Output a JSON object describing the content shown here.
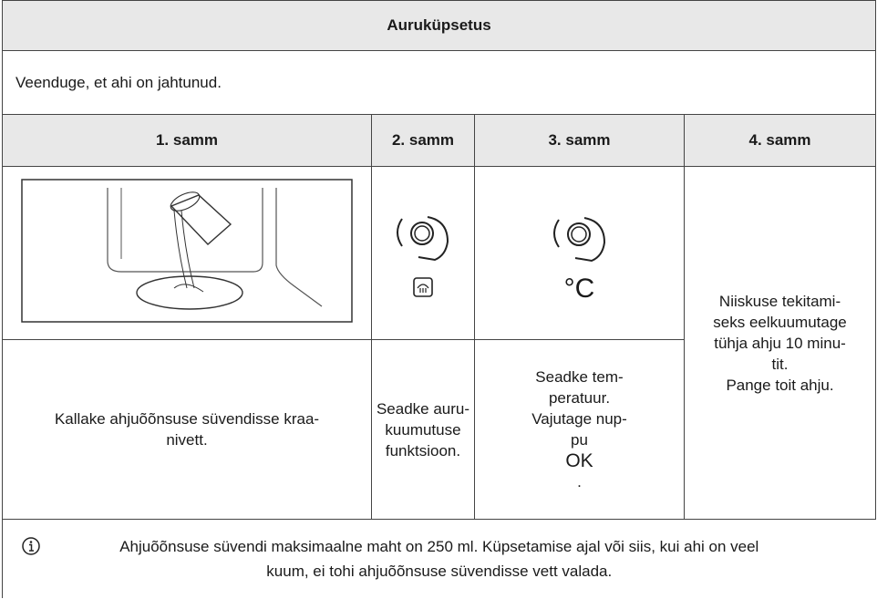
{
  "title": "Auruküpsetus",
  "intro": "Veenduge, et ahi on jahtunud.",
  "steps": [
    {
      "heading": "1. samm",
      "text": [
        "Kallake ahjuõõnsuse süvendisse kraa-",
        "nivett."
      ]
    },
    {
      "heading": "2. samm",
      "text": [
        "Seadke auru-",
        "kuumutuse",
        "funktsioon."
      ]
    },
    {
      "heading": "3. samm",
      "symbol": "°C",
      "text": [
        "Seadke tem-",
        "peratuur.",
        "Vajutage nup-",
        "pu",
        "OK",
        "."
      ]
    },
    {
      "heading": "4. samm",
      "text": [
        "Niiskuse tekitami-",
        "seks eelkuumutage",
        "tühja ahju 10 minu-",
        "tit.",
        "Pange toit ahju."
      ]
    }
  ],
  "note": [
    "Ahjuõõnsuse süvendi maksimaalne maht on 250 ml. Küpsetamise ajal või siis, kui ahi on veel",
    "kuum, ei tohi ahjuõõnsuse süvendisse vett valada."
  ]
}
